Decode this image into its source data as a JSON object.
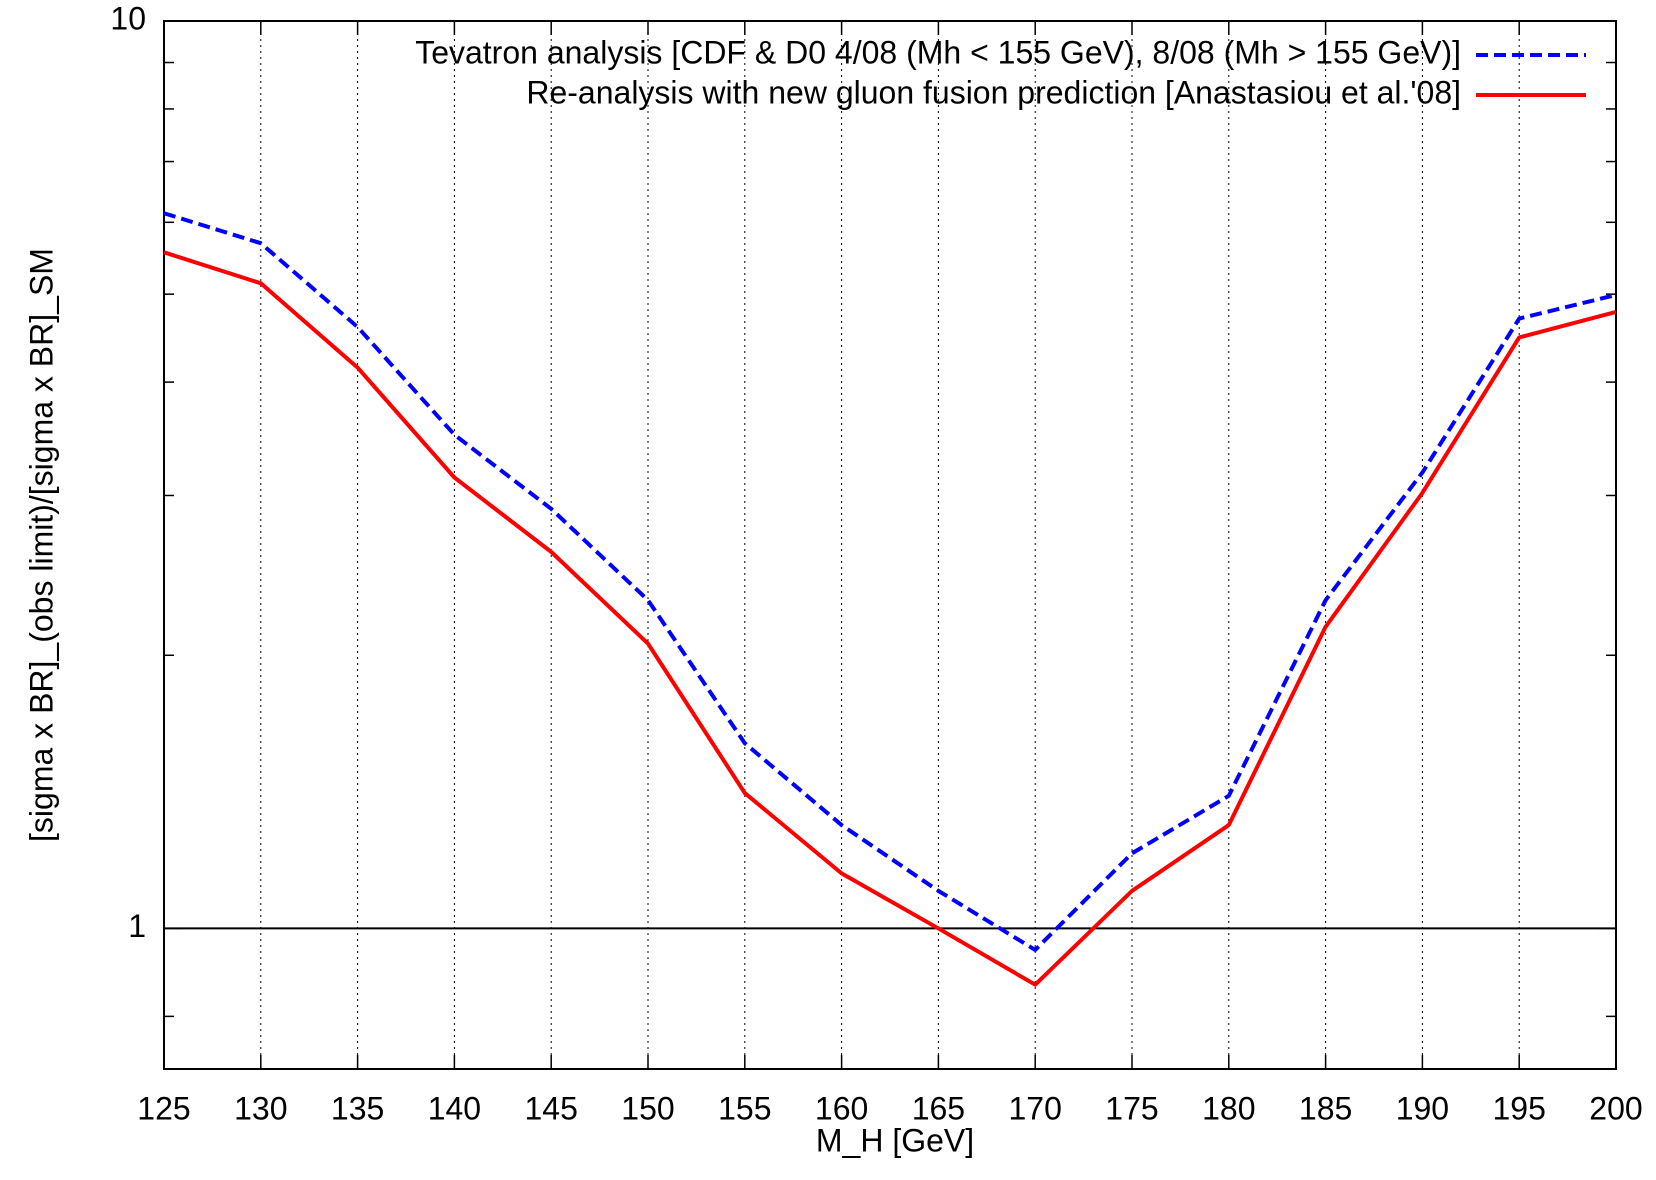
{
  "chart_data": {
    "type": "line",
    "xlabel": "M_H [GeV]",
    "ylabel": "[sigma x BR]_(obs limit)/[sigma x BR]_SM",
    "x": [
      125,
      130,
      135,
      140,
      145,
      150,
      155,
      160,
      165,
      170,
      175,
      180,
      185,
      190,
      195,
      200
    ],
    "series": [
      {
        "name": "Tevatron analysis [CDF & D0 4/08 (Mh < 155 GeV), 8/08 (Mh > 155 GeV)]",
        "color": "#0000ff",
        "dashed": true,
        "values": [
          6.14,
          5.69,
          4.6,
          3.5,
          2.9,
          2.3,
          1.6,
          1.3,
          1.1,
          0.947,
          1.21,
          1.4,
          2.3,
          3.18,
          4.7,
          4.99
        ]
      },
      {
        "name": "Re-analysis with new gluon fusion prediction [Anastasiou et al.'08]",
        "color": "#ff0000",
        "dashed": false,
        "values": [
          5.56,
          5.14,
          4.15,
          3.14,
          2.6,
          2.06,
          1.41,
          1.15,
          1.0,
          0.867,
          1.1,
          1.3,
          2.15,
          3.02,
          4.48,
          4.78
        ]
      }
    ],
    "xlim": [
      125,
      200
    ],
    "xticks": [
      125,
      130,
      135,
      140,
      145,
      150,
      155,
      160,
      165,
      170,
      175,
      180,
      185,
      190,
      195,
      200
    ],
    "ylim": [
      0.7,
      10
    ],
    "yticks": [
      1,
      10
    ],
    "y_minor_ticks": [
      0.8,
      2,
      3,
      4,
      5,
      6,
      7,
      8,
      9
    ],
    "ylog": true,
    "xgrid": true,
    "reference_line": 1,
    "legend": "top-right"
  }
}
